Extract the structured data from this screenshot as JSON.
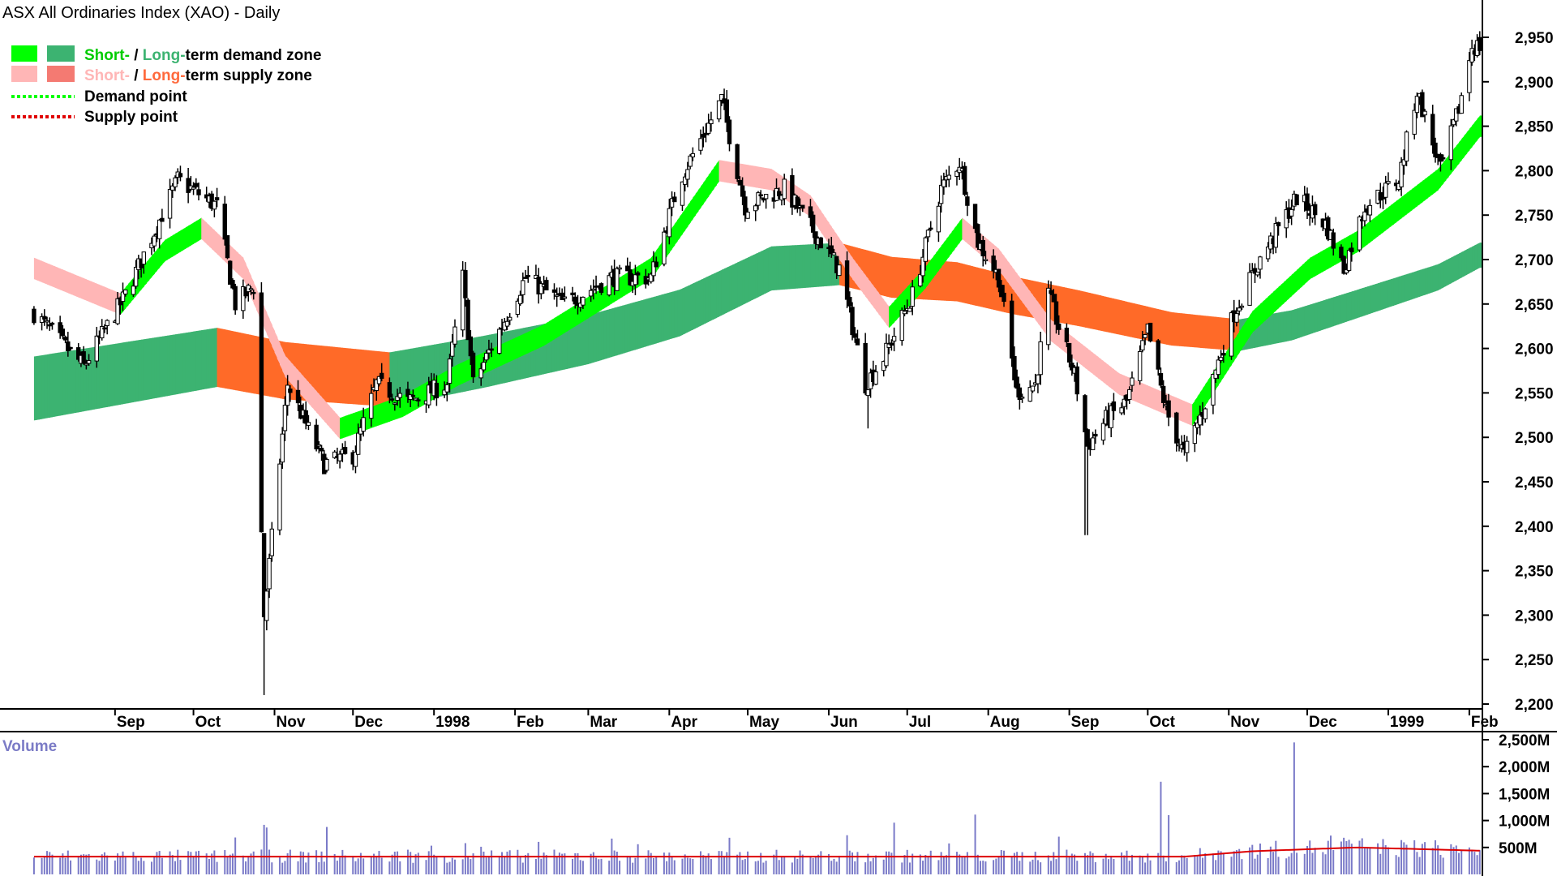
{
  "chart_data": {
    "type": "candlestick",
    "title": "ASX All Ordinaries Index (XAO) - Daily",
    "legend": {
      "items": [
        {
          "short_label": "Short-",
          "sep": " / ",
          "long_label": "Long-",
          "rest": "term demand zone",
          "short_color": "#00ff00",
          "long_color": "#3cb371",
          "label_color_short": "#00cc00",
          "label_color_long": "#3cb371"
        },
        {
          "short_label": "Short-",
          "sep": " / ",
          "long_label": "Long-",
          "rest": "term supply zone",
          "short_color": "#ffb6b6",
          "long_color": "#f47a72",
          "label_color_short": "#ffb6b6",
          "label_color_long": "#ff6a3d"
        },
        {
          "label": "Demand point",
          "color": "#00ff00"
        },
        {
          "label": "Supply point",
          "color": "#e00000"
        }
      ],
      "placement": "top-left"
    },
    "y_axis": {
      "range": [
        2190,
        2975
      ],
      "ticks": [
        2950,
        2900,
        2850,
        2800,
        2750,
        2700,
        2650,
        2600,
        2550,
        2500,
        2450,
        2400,
        2350,
        2300,
        2250,
        2200
      ],
      "tick_labels": [
        "2,950",
        "2,900",
        "2,850",
        "2,800",
        "2,750",
        "2,700",
        "2,650",
        "2,600",
        "2,550",
        "2,500",
        "2,450",
        "2,400",
        "2,350",
        "2,300",
        "2,250",
        "2,200"
      ],
      "side": "right"
    },
    "x_axis": {
      "labels": [
        "Sep",
        "Oct",
        "Nov",
        "Dec",
        "1998",
        "Feb",
        "Mar",
        "Apr",
        "May",
        "Jun",
        "Jul",
        "Aug",
        "Sep",
        "Oct",
        "Nov",
        "Dec",
        "1999",
        "Feb"
      ],
      "bold_labels": [
        "1998",
        "1999"
      ],
      "first_month": "1997-09",
      "last_month": "1999-02"
    },
    "price_keypoints": [
      [
        "1997-08-01",
        2640
      ],
      [
        "1997-08-20",
        2580
      ],
      [
        "1997-09-05",
        2660
      ],
      [
        "1997-09-25",
        2790
      ],
      [
        "1997-10-10",
        2760
      ],
      [
        "1997-10-17",
        2650
      ],
      [
        "1997-10-24",
        2670
      ],
      [
        "1997-10-28",
        2300
      ],
      [
        "1997-11-06",
        2560
      ],
      [
        "1997-11-20",
        2470
      ],
      [
        "1997-12-01",
        2480
      ],
      [
        "1997-12-10",
        2560
      ],
      [
        "1997-12-22",
        2540
      ],
      [
        "1998-01-06",
        2560
      ],
      [
        "1998-01-12",
        2680
      ],
      [
        "1998-01-16",
        2560
      ],
      [
        "1998-02-05",
        2680
      ],
      [
        "1998-02-20",
        2650
      ],
      [
        "1998-03-10",
        2680
      ],
      [
        "1998-03-25",
        2680
      ],
      [
        "1998-04-05",
        2790
      ],
      [
        "1998-04-21",
        2880
      ],
      [
        "1998-04-30",
        2760
      ],
      [
        "1998-05-15",
        2780
      ],
      [
        "1998-05-29",
        2720
      ],
      [
        "1998-06-05",
        2690
      ],
      [
        "1998-06-15",
        2560
      ],
      [
        "1998-06-22",
        2590
      ],
      [
        "1998-07-03",
        2660
      ],
      [
        "1998-07-14",
        2780
      ],
      [
        "1998-07-21",
        2810
      ],
      [
        "1998-07-28",
        2720
      ],
      [
        "1998-08-05",
        2680
      ],
      [
        "1998-08-12",
        2550
      ],
      [
        "1998-08-19",
        2560
      ],
      [
        "1998-08-24",
        2660
      ],
      [
        "1998-09-03",
        2570
      ],
      [
        "1998-09-08",
        2490
      ],
      [
        "1998-09-15",
        2520
      ],
      [
        "1998-09-23",
        2540
      ],
      [
        "1998-10-01",
        2620
      ],
      [
        "1998-10-08",
        2530
      ],
      [
        "1998-10-15",
        2480
      ],
      [
        "1998-10-22",
        2530
      ],
      [
        "1998-11-03",
        2640
      ],
      [
        "1998-11-13",
        2700
      ],
      [
        "1998-11-27",
        2770
      ],
      [
        "1998-12-08",
        2740
      ],
      [
        "1998-12-15",
        2690
      ],
      [
        "1998-12-23",
        2760
      ],
      [
        "1999-01-05",
        2790
      ],
      [
        "1999-01-12",
        2890
      ],
      [
        "1999-01-21",
        2800
      ],
      [
        "1999-01-28",
        2870
      ],
      [
        "1999-02-02",
        2940
      ]
    ],
    "short_term_zone": {
      "keypoints": [
        [
          "1997-08-01",
          2690
        ],
        [
          "1997-09-03",
          2650
        ],
        [
          "1997-09-20",
          2710
        ],
        [
          "1997-10-04",
          2735
        ],
        [
          "1997-10-20",
          2690
        ],
        [
          "1997-11-05",
          2580
        ],
        [
          "1997-11-26",
          2510
        ],
        [
          "1997-12-20",
          2535
        ],
        [
          "1998-01-10",
          2570
        ],
        [
          "1998-02-12",
          2615
        ],
        [
          "1998-03-25",
          2690
        ],
        [
          "1998-04-20",
          2800
        ],
        [
          "1998-05-10",
          2790
        ],
        [
          "1998-05-25",
          2760
        ],
        [
          "1998-06-10",
          2690
        ],
        [
          "1998-06-24",
          2635
        ],
        [
          "1998-07-08",
          2680
        ],
        [
          "1998-07-22",
          2735
        ],
        [
          "1998-08-05",
          2700
        ],
        [
          "1998-08-25",
          2620
        ],
        [
          "1998-09-20",
          2560
        ],
        [
          "1998-10-18",
          2525
        ],
        [
          "1998-11-10",
          2630
        ],
        [
          "1998-12-02",
          2690
        ],
        [
          "1998-12-20",
          2720
        ],
        [
          "1999-01-20",
          2790
        ],
        [
          "1999-02-05",
          2850
        ]
      ],
      "half_width": 12
    },
    "long_term_zone": {
      "keypoints": [
        [
          "1997-08-01",
          2555
        ],
        [
          "1997-10-10",
          2590
        ],
        [
          "1997-11-05",
          2575
        ],
        [
          "1997-12-15",
          2565
        ],
        [
          "1998-01-20",
          2585
        ],
        [
          "1998-03-01",
          2610
        ],
        [
          "1998-04-05",
          2640
        ],
        [
          "1998-05-10",
          2690
        ],
        [
          "1998-06-05",
          2695
        ],
        [
          "1998-06-25",
          2680
        ],
        [
          "1998-07-20",
          2675
        ],
        [
          "1998-08-10",
          2660
        ],
        [
          "1998-09-05",
          2645
        ],
        [
          "1998-10-10",
          2622
        ],
        [
          "1998-11-05",
          2615
        ],
        [
          "1998-11-25",
          2626
        ],
        [
          "1998-12-20",
          2650
        ],
        [
          "1999-01-20",
          2680
        ],
        [
          "1999-02-05",
          2705
        ]
      ],
      "half_width_start": 36,
      "half_width_end": 14
    },
    "volume": {
      "title": "Volume",
      "range": [
        0,
        2700
      ],
      "ticks": [
        2500,
        2000,
        1500,
        1000,
        500
      ],
      "tick_labels": [
        "2,500M",
        "2,000M",
        "1,500M",
        "1,000M",
        "500M"
      ],
      "base_level": 330,
      "average_keypoints": [
        [
          "1997-08-01",
          330
        ],
        [
          "1998-10-15",
          330
        ],
        [
          "1998-11-10",
          430
        ],
        [
          "1998-12-20",
          500
        ],
        [
          "1999-02-05",
          440
        ]
      ],
      "spikes": [
        [
          "1997-10-28",
          920
        ],
        [
          "1997-10-29",
          870
        ],
        [
          "1997-11-21",
          880
        ],
        [
          "1998-01-13",
          580
        ],
        [
          "1998-03-20",
          560
        ],
        [
          "1998-04-24",
          680
        ],
        [
          "1998-06-26",
          960
        ],
        [
          "1998-07-27",
          1110
        ],
        [
          "1998-08-28",
          700
        ],
        [
          "1998-10-06",
          1720
        ],
        [
          "1998-10-09",
          1100
        ],
        [
          "1998-11-26",
          2450
        ],
        [
          "1998-12-10",
          720
        ],
        [
          "1998-12-15",
          680
        ],
        [
          "1999-01-15",
          600
        ]
      ],
      "bar_color": "#7a7ac8",
      "average_color": "#dd0000"
    },
    "colors": {
      "up_short": "#00ff00",
      "up_long": "#3cb371",
      "down_short": "#ffb6b6",
      "down_long": "#ff6a28",
      "candle": "#000000",
      "volume_title": "#7b7bc6"
    },
    "grid": false
  }
}
